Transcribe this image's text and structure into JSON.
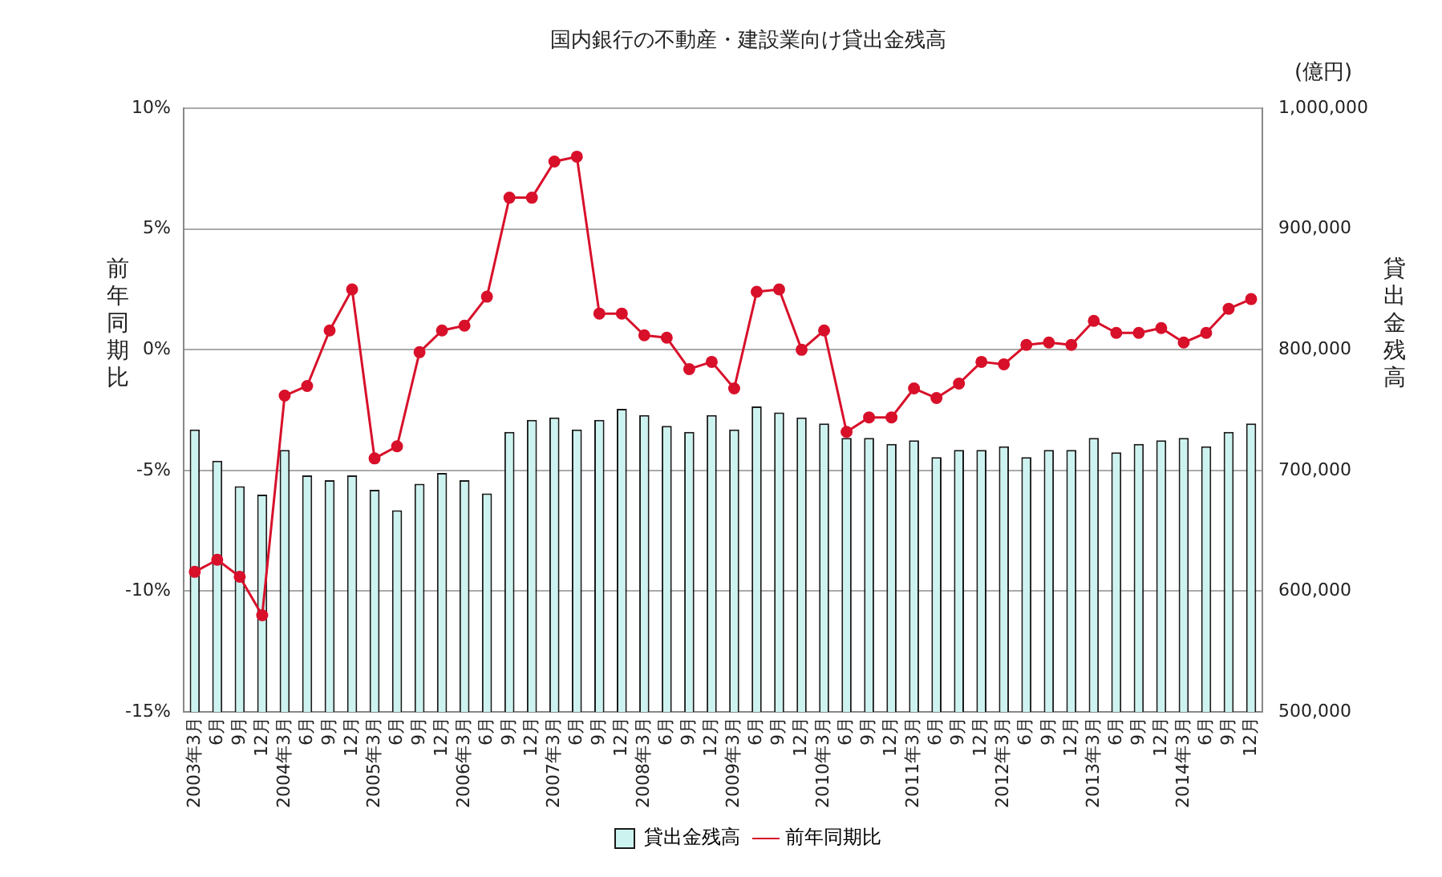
{
  "chart_data": {
    "type": "bar",
    "title": "国内銀行の不動産・建設業向け貸出金残高",
    "ylabel": "前年同期比",
    "y2label": "貸出金残高",
    "annotations": [
      "(億円)"
    ],
    "categories": [
      "2003年3月",
      "6月",
      "9月",
      "12月",
      "2004年3月",
      "6月",
      "9月",
      "12月",
      "2005年3月",
      "6月",
      "9月",
      "12月",
      "2006年3月",
      "6月",
      "9月",
      "12月",
      "2007年3月",
      "6月",
      "9月",
      "12月",
      "2008年3月",
      "6月",
      "9月",
      "12月",
      "2009年3月",
      "6月",
      "9月",
      "12月",
      "2010年3月",
      "6月",
      "9月",
      "12月",
      "2011年3月",
      "6月",
      "9月",
      "12月",
      "2012年3月",
      "6月",
      "9月",
      "12月",
      "2013年3月",
      "6月",
      "9月",
      "12月",
      "2014年3月",
      "6月",
      "9月",
      "12月"
    ],
    "series": [
      {
        "name": "貸出金残高",
        "axis": "y2",
        "color": "#cdf3f0",
        "values": [
          734000,
          708000,
          687000,
          680000,
          717000,
          696000,
          692000,
          696000,
          684000,
          667000,
          689000,
          698000,
          692000,
          681000,
          732000,
          742000,
          744000,
          734000,
          742000,
          751000,
          746000,
          737000,
          732000,
          746000,
          734000,
          753000,
          748000,
          744000,
          739000,
          727000,
          727000,
          722000,
          725000,
          711000,
          717000,
          717000,
          720000,
          711000,
          717000,
          717000,
          727000,
          715000,
          722000,
          725000,
          727000,
          720000,
          732000,
          739000
        ]
      },
      {
        "name": "前年同期比",
        "type": "line",
        "color": "#d8102a",
        "values": [
          -9.2,
          -8.7,
          -9.4,
          -11.0,
          -1.9,
          -1.5,
          0.8,
          2.5,
          -4.5,
          -4.0,
          -0.1,
          0.8,
          1.0,
          2.2,
          6.3,
          6.3,
          7.8,
          8.0,
          1.5,
          1.5,
          0.6,
          0.5,
          -0.8,
          -0.5,
          -1.6,
          2.4,
          2.5,
          0.0,
          0.8,
          -3.4,
          -2.8,
          -2.8,
          -1.6,
          -2.0,
          -1.4,
          -0.5,
          -0.6,
          0.2,
          0.3,
          0.2,
          1.2,
          0.7,
          0.7,
          0.9,
          0.3,
          0.7,
          1.7,
          2.1
        ]
      }
    ],
    "ylim": [
      -15,
      10
    ],
    "yticks": [
      {
        "value": -15,
        "label": "-15%"
      },
      {
        "value": -10,
        "label": "-10%"
      },
      {
        "value": -5,
        "label": "-5%"
      },
      {
        "value": 0,
        "label": "0%"
      },
      {
        "value": 5,
        "label": "5%"
      },
      {
        "value": 10,
        "label": "10%"
      }
    ],
    "y2lim": [
      500000,
      1000000
    ],
    "y2ticks": [
      {
        "value": 500000,
        "label": "500,000"
      },
      {
        "value": 600000,
        "label": "600,000"
      },
      {
        "value": 700000,
        "label": "700,000"
      },
      {
        "value": 800000,
        "label": "800,000"
      },
      {
        "value": 900000,
        "label": "900,000"
      },
      {
        "value": 1000000,
        "label": "1,000,000"
      }
    ],
    "grid": "y",
    "legend": "bottom",
    "marker": "circle",
    "line_style": "solid"
  }
}
